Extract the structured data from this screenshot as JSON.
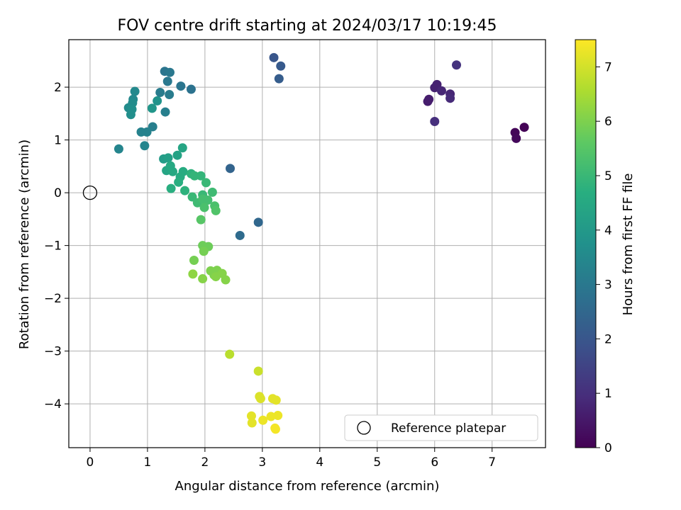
{
  "chart_data": {
    "type": "scatter",
    "title": "FOV centre drift starting at 2024/03/17 10:19:45",
    "xlabel": "Angular distance from reference (arcmin)",
    "ylabel": "Rotation from reference (arcmin)",
    "xlim": [
      -0.37,
      7.93
    ],
    "ylim": [
      -4.83,
      2.9
    ],
    "xticks": [
      0,
      1,
      2,
      3,
      4,
      5,
      6,
      7
    ],
    "yticks": [
      -4,
      -3,
      -2,
      -1,
      0,
      1,
      2
    ],
    "grid": true,
    "legend": {
      "placement": "bottom-right",
      "entries": [
        "Reference platepar"
      ]
    },
    "reference_point": {
      "x": 0,
      "y": 0
    },
    "colorbar": {
      "label": "Hours from first FF file",
      "min": 0,
      "max": 7.5,
      "ticks": [
        0,
        1,
        2,
        3,
        4,
        5,
        6,
        7
      ],
      "colormap": "viridis"
    },
    "points": [
      {
        "x": 7.56,
        "y": 1.24,
        "h": 0.05
      },
      {
        "x": 7.4,
        "y": 1.14,
        "h": 0.1
      },
      {
        "x": 7.42,
        "y": 1.03,
        "h": 0.15
      },
      {
        "x": 5.9,
        "y": 1.77,
        "h": 0.6
      },
      {
        "x": 5.88,
        "y": 1.73,
        "h": 0.6
      },
      {
        "x": 6.0,
        "y": 1.99,
        "h": 0.7
      },
      {
        "x": 6.04,
        "y": 2.05,
        "h": 0.7
      },
      {
        "x": 6.12,
        "y": 1.93,
        "h": 0.8
      },
      {
        "x": 6.27,
        "y": 1.87,
        "h": 0.8
      },
      {
        "x": 6.27,
        "y": 1.79,
        "h": 0.9
      },
      {
        "x": 6.0,
        "y": 1.35,
        "h": 1.0
      },
      {
        "x": 6.38,
        "y": 2.42,
        "h": 1.1
      },
      {
        "x": 3.2,
        "y": 2.56,
        "h": 2.0
      },
      {
        "x": 3.32,
        "y": 2.4,
        "h": 2.1
      },
      {
        "x": 3.29,
        "y": 2.16,
        "h": 2.2
      },
      {
        "x": 2.44,
        "y": 0.46,
        "h": 2.4
      },
      {
        "x": 2.93,
        "y": -0.56,
        "h": 2.5
      },
      {
        "x": 2.61,
        "y": -0.81,
        "h": 2.6
      },
      {
        "x": 1.76,
        "y": 1.96,
        "h": 2.8
      },
      {
        "x": 1.58,
        "y": 2.02,
        "h": 2.9
      },
      {
        "x": 1.3,
        "y": 2.3,
        "h": 2.9
      },
      {
        "x": 1.39,
        "y": 2.28,
        "h": 3.0
      },
      {
        "x": 1.35,
        "y": 2.11,
        "h": 3.0
      },
      {
        "x": 1.22,
        "y": 1.9,
        "h": 3.1
      },
      {
        "x": 1.38,
        "y": 1.86,
        "h": 3.1
      },
      {
        "x": 1.31,
        "y": 1.53,
        "h": 3.2
      },
      {
        "x": 1.09,
        "y": 1.25,
        "h": 3.2
      },
      {
        "x": 0.89,
        "y": 1.15,
        "h": 3.3
      },
      {
        "x": 0.99,
        "y": 1.15,
        "h": 3.3
      },
      {
        "x": 0.95,
        "y": 0.89,
        "h": 3.4
      },
      {
        "x": 0.5,
        "y": 0.83,
        "h": 3.4
      },
      {
        "x": 0.78,
        "y": 1.92,
        "h": 3.5
      },
      {
        "x": 0.75,
        "y": 1.77,
        "h": 3.5
      },
      {
        "x": 0.74,
        "y": 1.7,
        "h": 3.6
      },
      {
        "x": 0.67,
        "y": 1.61,
        "h": 3.6
      },
      {
        "x": 0.73,
        "y": 1.58,
        "h": 3.7
      },
      {
        "x": 0.71,
        "y": 1.48,
        "h": 3.7
      },
      {
        "x": 1.17,
        "y": 1.74,
        "h": 3.8
      },
      {
        "x": 1.08,
        "y": 1.6,
        "h": 3.9
      },
      {
        "x": 1.28,
        "y": 0.64,
        "h": 4.1
      },
      {
        "x": 1.36,
        "y": 0.66,
        "h": 4.2
      },
      {
        "x": 1.52,
        "y": 0.71,
        "h": 4.3
      },
      {
        "x": 1.61,
        "y": 0.85,
        "h": 4.4
      },
      {
        "x": 1.33,
        "y": 0.42,
        "h": 4.4
      },
      {
        "x": 1.4,
        "y": 0.51,
        "h": 4.5
      },
      {
        "x": 1.44,
        "y": 0.4,
        "h": 4.5
      },
      {
        "x": 1.57,
        "y": 0.3,
        "h": 4.6
      },
      {
        "x": 1.62,
        "y": 0.4,
        "h": 4.6
      },
      {
        "x": 1.54,
        "y": 0.2,
        "h": 4.7
      },
      {
        "x": 1.41,
        "y": 0.08,
        "h": 4.7
      },
      {
        "x": 1.65,
        "y": 0.04,
        "h": 4.8
      },
      {
        "x": 1.76,
        "y": 0.36,
        "h": 4.8
      },
      {
        "x": 1.82,
        "y": 0.32,
        "h": 4.9
      },
      {
        "x": 1.93,
        "y": 0.32,
        "h": 4.9
      },
      {
        "x": 2.02,
        "y": 0.19,
        "h": 5.0
      },
      {
        "x": 1.78,
        "y": -0.08,
        "h": 5.0
      },
      {
        "x": 1.96,
        "y": -0.04,
        "h": 5.0
      },
      {
        "x": 2.13,
        "y": 0.01,
        "h": 5.1
      },
      {
        "x": 1.87,
        "y": -0.19,
        "h": 5.1
      },
      {
        "x": 1.96,
        "y": -0.12,
        "h": 5.2
      },
      {
        "x": 2.05,
        "y": -0.14,
        "h": 5.2
      },
      {
        "x": 1.99,
        "y": -0.28,
        "h": 5.3
      },
      {
        "x": 2.17,
        "y": -0.25,
        "h": 5.3
      },
      {
        "x": 2.19,
        "y": -0.34,
        "h": 5.4
      },
      {
        "x": 1.93,
        "y": -0.51,
        "h": 5.5
      },
      {
        "x": 1.96,
        "y": -1.0,
        "h": 5.8
      },
      {
        "x": 2.06,
        "y": -1.02,
        "h": 5.8
      },
      {
        "x": 1.98,
        "y": -1.11,
        "h": 5.9
      },
      {
        "x": 1.81,
        "y": -1.28,
        "h": 5.9
      },
      {
        "x": 2.1,
        "y": -1.48,
        "h": 6.0
      },
      {
        "x": 2.16,
        "y": -1.56,
        "h": 6.0
      },
      {
        "x": 2.21,
        "y": -1.47,
        "h": 6.0
      },
      {
        "x": 2.3,
        "y": -1.53,
        "h": 6.1
      },
      {
        "x": 2.19,
        "y": -1.59,
        "h": 6.1
      },
      {
        "x": 2.36,
        "y": -1.65,
        "h": 6.1
      },
      {
        "x": 1.96,
        "y": -1.63,
        "h": 6.1
      },
      {
        "x": 1.79,
        "y": -1.54,
        "h": 6.2
      },
      {
        "x": 2.43,
        "y": -3.06,
        "h": 6.7
      },
      {
        "x": 2.93,
        "y": -3.38,
        "h": 6.9
      },
      {
        "x": 2.95,
        "y": -3.86,
        "h": 7.1
      },
      {
        "x": 2.97,
        "y": -3.9,
        "h": 7.1
      },
      {
        "x": 3.18,
        "y": -3.9,
        "h": 7.2
      },
      {
        "x": 3.24,
        "y": -3.93,
        "h": 7.2
      },
      {
        "x": 2.81,
        "y": -4.23,
        "h": 7.2
      },
      {
        "x": 2.82,
        "y": -4.36,
        "h": 7.2
      },
      {
        "x": 3.01,
        "y": -4.31,
        "h": 7.3
      },
      {
        "x": 3.15,
        "y": -4.24,
        "h": 7.3
      },
      {
        "x": 3.27,
        "y": -4.22,
        "h": 7.3
      },
      {
        "x": 3.22,
        "y": -4.46,
        "h": 7.4
      },
      {
        "x": 3.23,
        "y": -4.48,
        "h": 7.4
      }
    ]
  }
}
